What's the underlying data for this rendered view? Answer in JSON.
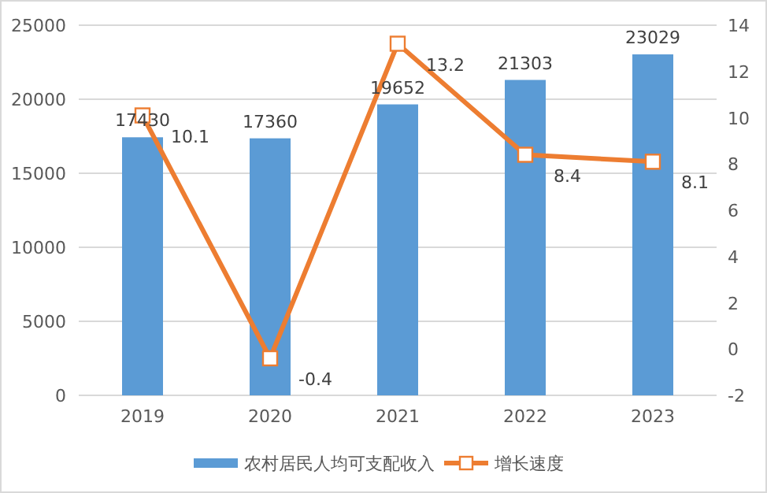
{
  "chart_data": {
    "type": "bar",
    "categories": [
      "2019",
      "2020",
      "2021",
      "2022",
      "2023"
    ],
    "series": [
      {
        "name": "农村居民人均可支配收入",
        "color": "#5b9bd5",
        "values": [
          17430,
          17360,
          19652,
          21303,
          23029
        ]
      },
      {
        "name": "增长速度",
        "type": "line",
        "axis": "y2",
        "color": "#ed7d31",
        "values": [
          10.1,
          -0.4,
          13.2,
          8.4,
          8.1
        ]
      }
    ],
    "ylim": [
      0,
      25000
    ],
    "yticks": [
      0,
      5000,
      10000,
      15000,
      20000,
      25000
    ],
    "y2lim": [
      -2,
      14
    ],
    "y2ticks": [
      -2,
      0,
      2,
      4,
      6,
      8,
      10,
      12,
      14
    ],
    "grid": "y",
    "legend": "bottom",
    "data_labels": true,
    "marker": "square",
    "line_style": "solid"
  }
}
